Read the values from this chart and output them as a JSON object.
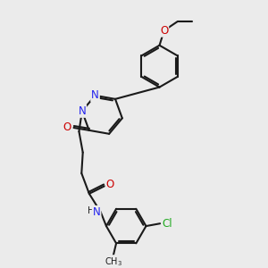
{
  "background_color": "#ebebeb",
  "bond_color": "#1a1a1a",
  "bond_width": 1.5,
  "atom_colors": {
    "N": "#2222ee",
    "O": "#cc0000",
    "Cl": "#22aa22",
    "C": "#1a1a1a"
  },
  "font_size_atom": 8.5,
  "font_size_sub": 7.0,
  "figsize": [
    3.0,
    3.0
  ],
  "dpi": 100
}
